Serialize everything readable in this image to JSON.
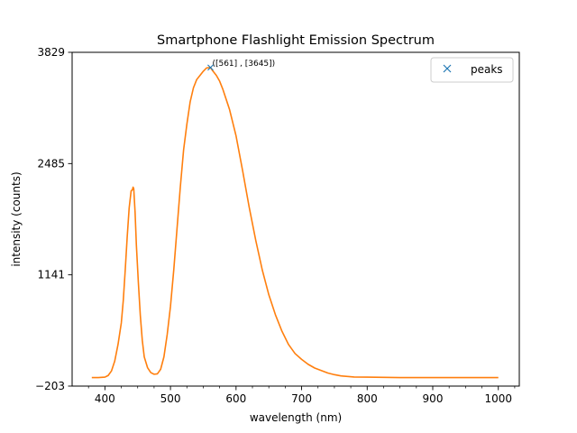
{
  "chart_data": {
    "type": "line",
    "title": "Smartphone Flashlight Emission Spectrum",
    "xlabel": "wavelength (nm)",
    "ylabel": "intensity (counts)",
    "xlim": [
      350,
      1032
    ],
    "ylim": [
      -203,
      3829
    ],
    "xticks": [
      400,
      500,
      600,
      700,
      800,
      900,
      1000
    ],
    "yticks": [
      -203,
      1141,
      2485,
      3829
    ],
    "ytick_labels": [
      "−203",
      "1141",
      "2485",
      "3829"
    ],
    "grid": false,
    "legend": {
      "position": "top-right",
      "entries": [
        {
          "label": "peaks",
          "marker": "x",
          "color": "#1f77b4"
        }
      ]
    },
    "series": [
      {
        "color": "#ff7f0e",
        "x": [
          380,
          390,
          400,
          405,
          410,
          415,
          420,
          425,
          428,
          431,
          434,
          437,
          440,
          442,
          443,
          444,
          446,
          448,
          451,
          454,
          457,
          460,
          465,
          470,
          475,
          480,
          485,
          490,
          495,
          500,
          505,
          510,
          515,
          520,
          525,
          530,
          535,
          540,
          545,
          550,
          555,
          561,
          565,
          570,
          575,
          580,
          590,
          600,
          610,
          620,
          630,
          640,
          650,
          660,
          670,
          680,
          690,
          700,
          710,
          720,
          730,
          740,
          750,
          760,
          780,
          800,
          850,
          900,
          950,
          1000
        ],
        "y": [
          -100,
          -100,
          -95,
          -75,
          -20,
          100,
          300,
          560,
          830,
          1200,
          1600,
          1950,
          2155,
          2170,
          2200,
          2180,
          1900,
          1500,
          1050,
          650,
          350,
          150,
          20,
          -40,
          -60,
          -55,
          0,
          150,
          420,
          760,
          1200,
          1700,
          2200,
          2650,
          2960,
          3230,
          3400,
          3500,
          3550,
          3600,
          3640,
          3645,
          3600,
          3550,
          3480,
          3380,
          3140,
          2820,
          2400,
          1960,
          1560,
          1200,
          900,
          660,
          460,
          300,
          190,
          120,
          60,
          15,
          -15,
          -45,
          -65,
          -80,
          -93,
          -95,
          -100,
          -100,
          -100,
          -100
        ]
      }
    ],
    "peaks": [
      {
        "x": 561,
        "y": 3645,
        "label": "([561] , [3645])"
      }
    ]
  }
}
